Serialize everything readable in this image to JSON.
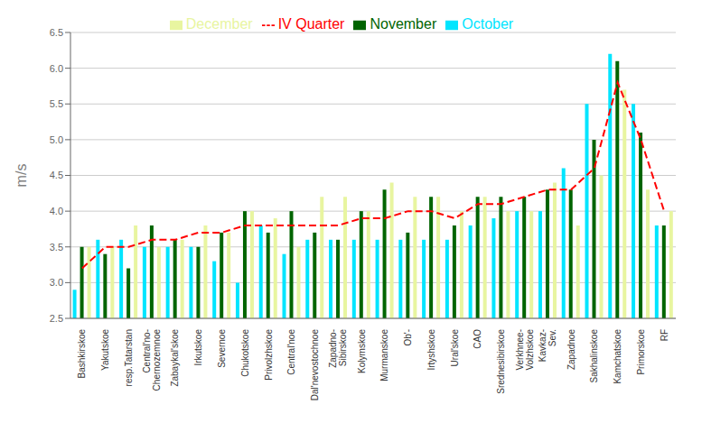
{
  "chart_data": {
    "type": "bar",
    "categories": [
      "Bashkirskoe",
      "Yakutskoe",
      "resp.Tatarstan",
      "Central'no-\nChernozemnoe",
      "Zabaykal'skoe",
      "Irkutskoe",
      "Severnoe",
      "Chukotskoe",
      "Privolzhskoe",
      "Central'noe",
      "Dal'nevostochnoe",
      "Zapadno-\nSibirskoe",
      "Kolymskoe",
      "Murmanskoe",
      "Ob'-",
      "Irtyshskoe",
      "Ural'skoe",
      "CAO",
      "Srednesibirskoe",
      "Verkhnee-\nVolzhskoe",
      "Kavkaz-\nSev.",
      "Zapadnoe",
      "Sakhalinskoe",
      "Kamchatskoe",
      "Primorskoe",
      "RF"
    ],
    "series": [
      {
        "name": "October",
        "color": "#00e5ff",
        "values": [
          2.9,
          3.6,
          3.6,
          3.5,
          3.5,
          3.5,
          3.3,
          3.0,
          3.8,
          3.4,
          3.6,
          3.6,
          3.6,
          3.6,
          3.6,
          3.6,
          3.6,
          3.8,
          3.9,
          4.0,
          4.0,
          4.6,
          5.5,
          6.2,
          5.5,
          3.8
        ]
      },
      {
        "name": "November",
        "color": "#006400",
        "values": [
          3.5,
          3.4,
          3.2,
          3.8,
          3.6,
          3.5,
          3.7,
          4.0,
          3.7,
          4.0,
          3.7,
          3.6,
          4.0,
          4.3,
          3.7,
          4.2,
          3.8,
          4.2,
          4.2,
          4.2,
          4.3,
          4.3,
          5.0,
          6.1,
          5.1,
          3.8
        ]
      },
      {
        "name": "December",
        "color": "#e8f5a0",
        "values": [
          3.5,
          3.5,
          3.8,
          3.5,
          3.6,
          3.8,
          3.7,
          4.0,
          3.9,
          3.5,
          4.2,
          4.2,
          4.0,
          4.4,
          4.2,
          4.2,
          4.0,
          4.2,
          4.0,
          4.0,
          4.4,
          3.8,
          4.5,
          5.7,
          4.3,
          4.0
        ]
      },
      {
        "name": "IV Quarter",
        "type": "line",
        "line_style": "dashed",
        "color": "#ff0000",
        "values": [
          3.2,
          3.5,
          3.5,
          3.6,
          3.6,
          3.7,
          3.7,
          3.8,
          3.8,
          3.8,
          3.8,
          3.8,
          3.9,
          3.9,
          4.0,
          4.0,
          3.9,
          4.1,
          4.1,
          4.2,
          4.3,
          4.3,
          4.6,
          5.8,
          5.0,
          4.0
        ]
      }
    ],
    "ylabel": "m/s",
    "ylim": [
      2.5,
      6.5
    ],
    "yticks": [
      {
        "value": 2.5,
        "label": "2.5"
      },
      {
        "value": 3.0,
        "label": "3.0"
      },
      {
        "value": 3.5,
        "label": "3.5"
      },
      {
        "value": 4.0,
        "label": "4.0"
      },
      {
        "value": 4.5,
        "label": "4.5"
      },
      {
        "value": 5.0,
        "label": "5.0"
      },
      {
        "value": 5.5,
        "label": "5.5"
      },
      {
        "value": 6.0,
        "label": "6.0"
      },
      {
        "value": 6.5,
        "label": "6.5"
      }
    ],
    "grid": true,
    "legend": "top"
  }
}
